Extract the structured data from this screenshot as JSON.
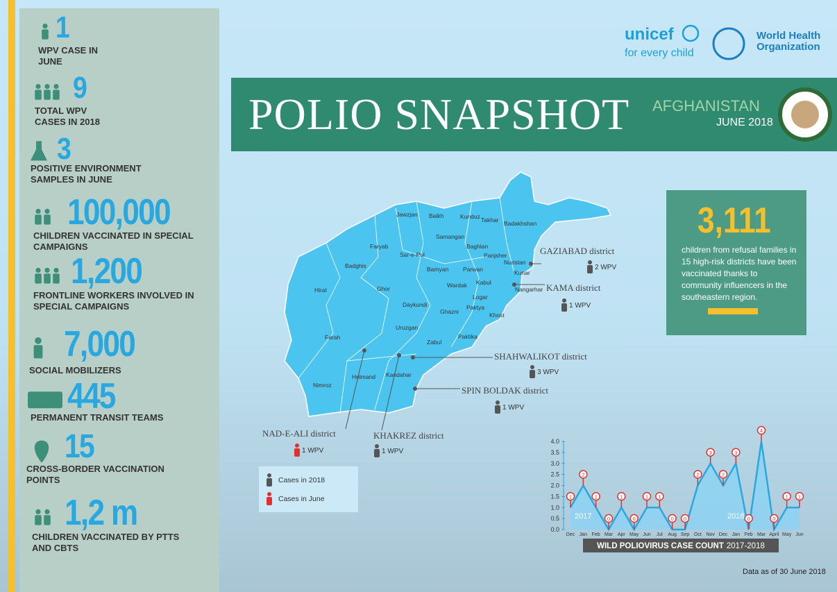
{
  "header": {
    "unicef": "unicef",
    "unicef_tagline": "for every child",
    "who": [
      "World Health",
      "Organization"
    ]
  },
  "banner": {
    "title": "POLIO SNAPSHOT",
    "country": "AFGHANISTAN",
    "date": "JUNE 2018"
  },
  "stats": [
    {
      "value": "1",
      "label": "WPV CASE IN JUNE"
    },
    {
      "value": "9",
      "label": "TOTAL WPV CASES IN 2018"
    },
    {
      "value": "3",
      "label": "POSITIVE ENVIRONMENT SAMPLES IN JUNE"
    },
    {
      "value": "100,000",
      "label": "CHILDREN VACCINATED IN SPECIAL CAMPAIGNS"
    },
    {
      "value": "1,200",
      "label": "FRONTLINE WORKERS INVOLVED IN SPECIAL CAMPAIGNS"
    },
    {
      "value": "7,000",
      "label": "SOCIAL MOBILIZERS"
    },
    {
      "value": "445",
      "label": "PERMANENT TRANSIT TEAMS"
    },
    {
      "value": "15",
      "label": "CROSS-BORDER VACCINATION POINTS"
    },
    {
      "value": "1,2 m",
      "label": "CHILDREN VACCINATED BY PTTS AND CBTS"
    }
  ],
  "callout": {
    "value": "3,111",
    "text": "children from refusal families in 15 high-risk districts have been vaccinated thanks to community influencers in the southeastern region."
  },
  "map": {
    "provinces": [
      "Jawzjan",
      "Balkh",
      "Kunduz",
      "Takhar",
      "Badakhshan",
      "Samangan",
      "Faryab",
      "Sar-e-Pul",
      "Baghlan",
      "Panjsher",
      "Nuristan",
      "Badghis",
      "Bamyan",
      "Parwan",
      "Kunar",
      "Kabul",
      "Wardak",
      "Nangarhar",
      "Hirat",
      "Ghor",
      "Logar",
      "Daykundi",
      "Paktya",
      "Ghazni",
      "Khost",
      "Uruzgan",
      "Zabul",
      "Paktika",
      "Farah",
      "Helmand",
      "Kandahar",
      "Nimroz"
    ],
    "districts": [
      {
        "name": "GAZIABAD district",
        "cases": "2 WPV"
      },
      {
        "name": "KAMA district",
        "cases": "1 WPV"
      },
      {
        "name": "SHAHWALIKOT district",
        "cases": "3 WPV"
      },
      {
        "name": "SPIN BOLDAK district",
        "cases": "1 WPV"
      },
      {
        "name": "NAD-E-ALI district",
        "cases": "1 WPV"
      },
      {
        "name": "KHAKREZ district",
        "cases": "1 WPV"
      }
    ]
  },
  "legend": [
    "Cases in 2018",
    "Cases in June"
  ],
  "chart_data": {
    "type": "area",
    "title": "WILD POLIOVIRUS CASE COUNT",
    "subtitle": "2017-2018",
    "categories": [
      "Dec",
      "Jan",
      "Feb",
      "Mar",
      "Apr",
      "May",
      "Jun",
      "Jul",
      "Aug",
      "Sep",
      "Oct",
      "Nov",
      "Dec",
      "Jan",
      "Feb",
      "Mar",
      "April",
      "May",
      "Jun"
    ],
    "values": [
      1,
      2,
      1,
      0,
      1,
      0,
      1,
      1,
      0,
      0,
      2,
      3,
      2,
      3,
      0,
      4,
      0,
      1,
      1
    ],
    "annotations": [
      "2017",
      "2018"
    ],
    "color": "#29a8e0",
    "ylim": [
      0,
      4
    ],
    "yticks": [
      {
        "value": 0,
        "label": "0.0"
      },
      {
        "value": 0.5,
        "label": "0.5"
      },
      {
        "value": 1,
        "label": "1.0"
      },
      {
        "value": 1.5,
        "label": "1.5"
      },
      {
        "value": 2,
        "label": "2.0"
      },
      {
        "value": 2.5,
        "label": "2.5"
      },
      {
        "value": 3,
        "label": "3.0"
      },
      {
        "value": 3.5,
        "label": "3.5"
      },
      {
        "value": 4,
        "label": "4.0"
      }
    ]
  },
  "footer": "Data as of 30 June 2018"
}
